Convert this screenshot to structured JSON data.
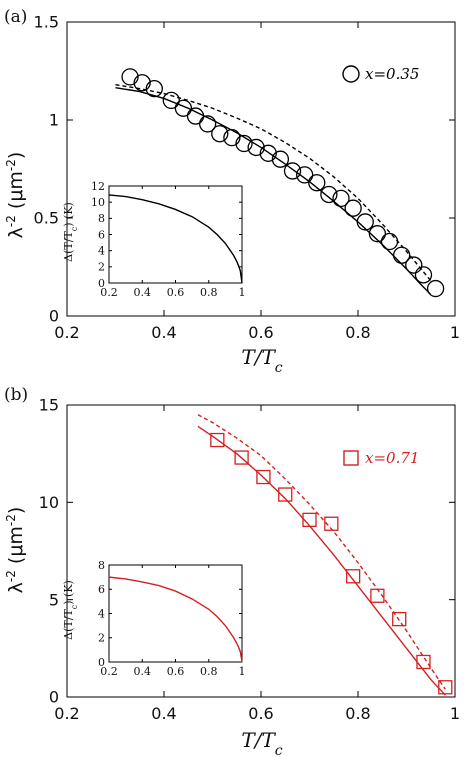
{
  "panels": {
    "a": {
      "label": "(a)",
      "ylabel_main": "λ",
      "ylabel_sup": "-2",
      "ylabel_unit": " (μm",
      "ylabel_unit_sup": "-2",
      "ylabel_close": ")",
      "xlabel": "T/T",
      "xlabel_sub": "c",
      "legend_text": "x=0.35",
      "inset_ylabel": "Δ(T/T",
      "inset_ylabel_sub": "c",
      "inset_ylabel_tail": ") (K)"
    },
    "b": {
      "label": "(b)",
      "ylabel_main": "λ",
      "ylabel_sup": "-2",
      "ylabel_unit": " (μm",
      "ylabel_unit_sup": "-2",
      "ylabel_close": ")",
      "xlabel": "T/T",
      "xlabel_sub": "c",
      "legend_text": "x=0.71",
      "inset_ylabel": "Δ(T/T",
      "inset_ylabel_sub": "c",
      "inset_ylabel_tail": ") (K)"
    }
  },
  "chart_data": [
    {
      "type": "scatter",
      "panel": "a",
      "xlim": [
        0.2,
        1.0
      ],
      "ylim": [
        0,
        1.5
      ],
      "xticks": [
        "0.2",
        "0.4",
        "0.6",
        "0.8",
        "1"
      ],
      "yticks": [
        "0",
        "0.5",
        "1",
        "1.5"
      ],
      "xtick_values": [
        0.2,
        0.4,
        0.6,
        0.8,
        1.0
      ],
      "ytick_values": [
        0,
        0.5,
        1,
        1.5
      ],
      "color": "#000000",
      "marker": "circle",
      "series": [
        {
          "name": "x=0.35",
          "kind": "points",
          "x": [
            0.33,
            0.355,
            0.38,
            0.415,
            0.44,
            0.465,
            0.49,
            0.515,
            0.54,
            0.565,
            0.59,
            0.615,
            0.64,
            0.665,
            0.69,
            0.715,
            0.74,
            0.765,
            0.79,
            0.815,
            0.84,
            0.865,
            0.89,
            0.915,
            0.935,
            0.96
          ],
          "y": [
            1.22,
            1.19,
            1.16,
            1.1,
            1.06,
            1.02,
            0.98,
            0.93,
            0.91,
            0.88,
            0.86,
            0.83,
            0.8,
            0.74,
            0.72,
            0.68,
            0.62,
            0.6,
            0.55,
            0.48,
            0.42,
            0.38,
            0.31,
            0.26,
            0.21,
            0.14
          ]
        },
        {
          "kind": "line",
          "style": "solid",
          "x": [
            0.3,
            0.35,
            0.4,
            0.45,
            0.5,
            0.55,
            0.6,
            0.65,
            0.7,
            0.75,
            0.8,
            0.85,
            0.9,
            0.93,
            0.95
          ],
          "y": [
            1.165,
            1.145,
            1.11,
            1.06,
            1.0,
            0.935,
            0.86,
            0.775,
            0.685,
            0.585,
            0.48,
            0.365,
            0.24,
            0.16,
            0.11
          ]
        },
        {
          "kind": "line",
          "style": "dashed",
          "x": [
            0.3,
            0.35,
            0.4,
            0.45,
            0.5,
            0.55,
            0.6,
            0.65,
            0.7,
            0.75,
            0.8,
            0.85,
            0.9,
            0.93,
            0.95
          ],
          "y": [
            1.18,
            1.16,
            1.135,
            1.1,
            1.06,
            1.01,
            0.955,
            0.885,
            0.805,
            0.71,
            0.6,
            0.47,
            0.33,
            0.24,
            0.18
          ]
        }
      ],
      "inset": {
        "type": "line",
        "xlim": [
          0.2,
          1.0
        ],
        "ylim": [
          0,
          12
        ],
        "xticks": [
          "0.2",
          "0.4",
          "0.6",
          "0.8",
          "1"
        ],
        "yticks": [
          "0",
          "2",
          "4",
          "6",
          "8",
          "10",
          "12"
        ],
        "xtick_values": [
          0.2,
          0.4,
          0.6,
          0.8,
          1.0
        ],
        "ytick_values": [
          0,
          2,
          4,
          6,
          8,
          10,
          12
        ],
        "x": [
          0.2,
          0.3,
          0.4,
          0.5,
          0.6,
          0.7,
          0.8,
          0.85,
          0.9,
          0.95,
          0.97,
          0.98,
          0.99,
          1.0
        ],
        "y": [
          10.9,
          10.7,
          10.3,
          9.8,
          9.1,
          8.2,
          6.9,
          6.0,
          4.9,
          3.4,
          2.6,
          2.1,
          1.5,
          0.0
        ]
      }
    },
    {
      "type": "scatter",
      "panel": "b",
      "xlim": [
        0.2,
        1.0
      ],
      "ylim": [
        0,
        15
      ],
      "xticks": [
        "0.2",
        "0.4",
        "0.6",
        "0.8",
        "1"
      ],
      "yticks": [
        "0",
        "5",
        "10",
        "15"
      ],
      "xtick_values": [
        0.2,
        0.4,
        0.6,
        0.8,
        1.0
      ],
      "ytick_values": [
        0,
        5,
        10,
        15
      ],
      "color": "#d42020",
      "marker": "square",
      "series": [
        {
          "name": "x=0.71",
          "kind": "points",
          "x": [
            0.51,
            0.56,
            0.605,
            0.65,
            0.7,
            0.745,
            0.79,
            0.84,
            0.885,
            0.935,
            0.98
          ],
          "y": [
            13.2,
            12.3,
            11.3,
            10.4,
            9.1,
            8.9,
            6.2,
            5.2,
            4.0,
            1.8,
            0.5
          ]
        },
        {
          "kind": "line",
          "style": "solid",
          "x": [
            0.47,
            0.5,
            0.55,
            0.6,
            0.65,
            0.7,
            0.75,
            0.8,
            0.85,
            0.9,
            0.95,
            0.98
          ],
          "y": [
            13.9,
            13.4,
            12.5,
            11.4,
            10.2,
            8.8,
            7.3,
            5.7,
            4.1,
            2.5,
            0.9,
            0.1
          ]
        },
        {
          "kind": "line",
          "style": "dashed",
          "x": [
            0.47,
            0.5,
            0.55,
            0.6,
            0.65,
            0.7,
            0.75,
            0.8,
            0.85,
            0.9,
            0.95,
            0.98
          ],
          "y": [
            14.5,
            14.1,
            13.3,
            12.4,
            11.2,
            9.9,
            8.5,
            6.9,
            5.2,
            3.4,
            1.5,
            0.4
          ]
        }
      ],
      "inset": {
        "type": "line",
        "xlim": [
          0.2,
          1.0
        ],
        "ylim": [
          0,
          8
        ],
        "xticks": [
          "0.2",
          "0.4",
          "0.6",
          "0.8",
          "1"
        ],
        "yticks": [
          "0",
          "2",
          "4",
          "6",
          "8"
        ],
        "xtick_values": [
          0.2,
          0.4,
          0.6,
          0.8,
          1.0
        ],
        "ytick_values": [
          0,
          2,
          4,
          6,
          8
        ],
        "x": [
          0.2,
          0.3,
          0.4,
          0.5,
          0.6,
          0.7,
          0.8,
          0.85,
          0.9,
          0.95,
          0.97,
          0.98,
          0.99,
          1.0
        ],
        "y": [
          7.0,
          6.85,
          6.6,
          6.3,
          5.85,
          5.2,
          4.35,
          3.75,
          3.0,
          2.0,
          1.5,
          1.2,
          0.85,
          0.0
        ]
      }
    }
  ]
}
